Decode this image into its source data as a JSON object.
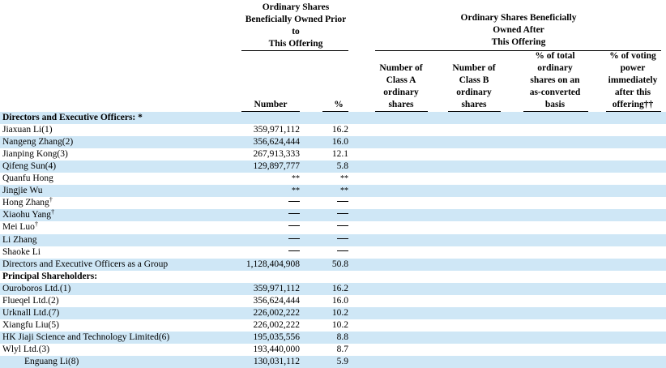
{
  "headers": {
    "prior_group": [
      "Ordinary Shares",
      "Beneficially Owned Prior",
      "to",
      "This Offering"
    ],
    "after_group": [
      "Ordinary Shares Beneficially",
      "Owned After",
      "This Offering"
    ],
    "number": "Number",
    "percent": "%",
    "class_a": [
      "Number of",
      "Class A",
      "ordinary",
      "shares"
    ],
    "class_b": [
      "Number of",
      "Class B",
      "ordinary",
      "shares"
    ],
    "pct_total": [
      "% of total",
      "ordinary",
      "shares on an",
      "as-converted",
      "basis"
    ],
    "pct_voting": [
      "% of voting",
      "power",
      "immediately",
      "after this",
      "offering††"
    ]
  },
  "rows": [
    {
      "label": "Directors and Executive Officers: *",
      "number": "",
      "pct": "",
      "kind": "section"
    },
    {
      "label": "Jiaxuan Li(1)",
      "number": "359,971,112",
      "pct": "16.2"
    },
    {
      "label": "Nangeng Zhang(2)",
      "number": "356,624,444",
      "pct": "16.0"
    },
    {
      "label": "Jianping Kong(3)",
      "number": "267,913,333",
      "pct": "12.1"
    },
    {
      "label": "Qifeng Sun(4)",
      "number": "129,897,777",
      "pct": "5.8"
    },
    {
      "label": "Quanfu Hong",
      "number": "**",
      "pct": "**"
    },
    {
      "label": "Jingjie Wu",
      "number": "**",
      "pct": "**"
    },
    {
      "label": "Hong Zhang",
      "sup": "†",
      "number": "—",
      "pct": "—"
    },
    {
      "label": "Xiaohu Yang",
      "sup": "†",
      "number": "—",
      "pct": "—"
    },
    {
      "label": "Mei Luo",
      "sup": "†",
      "number": "—",
      "pct": "—"
    },
    {
      "label": "Li Zhang",
      "number": "—",
      "pct": "—"
    },
    {
      "label": "Shaoke Li",
      "number": "—",
      "pct": "—"
    },
    {
      "label": "Directors and Executive Officers as a Group",
      "number": "1,128,404,908",
      "pct": "50.8"
    },
    {
      "label": "Principal Shareholders:",
      "number": "",
      "pct": "",
      "kind": "section"
    },
    {
      "label": "Ouroboros Ltd.(1)",
      "number": "359,971,112",
      "pct": "16.2"
    },
    {
      "label": "Flueqel Ltd.(2)",
      "number": "356,624,444",
      "pct": "16.0"
    },
    {
      "label": "Urknall Ltd.(7)",
      "number": "226,002,222",
      "pct": "10.2"
    },
    {
      "label": "Xiangfu Liu(5)",
      "number": "226,002,222",
      "pct": "10.2"
    },
    {
      "label": "HK Jiaji Science and Technology Limited(6)",
      "number": "195,035,556",
      "pct": "8.8"
    },
    {
      "label": "Wlyl Ltd.(3)",
      "number": "193,440,000",
      "pct": "8.7"
    },
    {
      "label": "Enguang Li(8)",
      "number": "130,031,112",
      "pct": "5.9",
      "kind": "indent"
    }
  ]
}
